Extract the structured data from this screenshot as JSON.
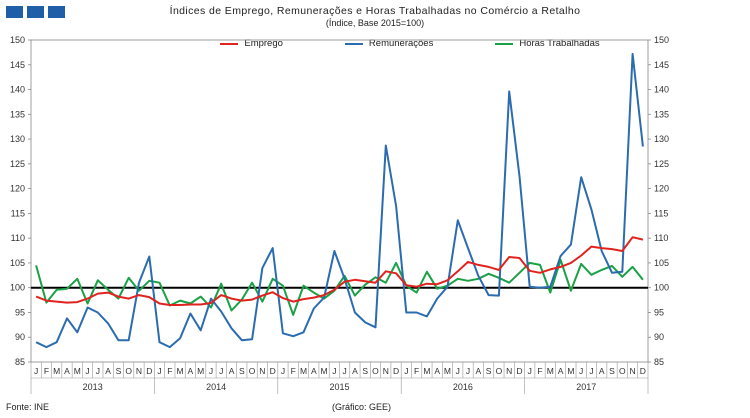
{
  "header": {
    "title": "Índices de Emprego, Remunerações e Horas Trabalhadas no Comércio a Retalho",
    "subtitle": "(Índice, Base 2015=100)"
  },
  "logo_color": "#1f5fa8",
  "footer": {
    "source": "Fonte: INE",
    "credit": "(Gráfico: GEE)"
  },
  "chart_data": {
    "type": "line",
    "ylim": [
      85,
      150
    ],
    "y_ticks": [
      85,
      90,
      95,
      100,
      105,
      110,
      115,
      120,
      125,
      130,
      135,
      140,
      145,
      150
    ],
    "reference_line": 100,
    "grid": false,
    "legend_position": "top",
    "month_labels": [
      "J",
      "F",
      "M",
      "A",
      "M",
      "J",
      "J",
      "A",
      "S",
      "O",
      "N",
      "D"
    ],
    "years": [
      "2013",
      "2014",
      "2015",
      "2016",
      "2017"
    ],
    "series": [
      {
        "name": "Emprego",
        "color": "#e0231f",
        "values": [
          98.2,
          97.4,
          97.2,
          97.0,
          97.1,
          97.8,
          98.8,
          99.0,
          98.2,
          97.8,
          98.5,
          98.1,
          96.8,
          96.5,
          96.5,
          96.6,
          96.6,
          96.9,
          98.5,
          97.8,
          97.4,
          97.6,
          98.4,
          99.1,
          97.9,
          97.2,
          97.7,
          98.0,
          98.5,
          99.6,
          101.2,
          101.6,
          101.3,
          101.0,
          103.3,
          102.9,
          100.5,
          100.2,
          100.8,
          100.7,
          101.5,
          103.3,
          105.2,
          104.6,
          104.2,
          103.6,
          106.2,
          106.0,
          103.4,
          103.0,
          103.7,
          104.2,
          105.0,
          106.5,
          108.3,
          108.0,
          107.8,
          107.4,
          110.2,
          109.7
        ]
      },
      {
        "name": "Remunerações",
        "color": "#2b6cb0",
        "values": [
          89.0,
          88.0,
          89.0,
          93.8,
          91.0,
          96.0,
          95.0,
          92.8,
          89.4,
          89.4,
          101.0,
          106.3,
          89.0,
          88.0,
          89.8,
          94.8,
          91.4,
          97.8,
          95.2,
          91.8,
          89.4,
          89.6,
          104.0,
          108.0,
          90.8,
          90.2,
          91.0,
          95.8,
          98.0,
          107.4,
          101.8,
          95.0,
          93.0,
          92.0,
          128.7,
          116.5,
          95.0,
          95.0,
          94.2,
          97.8,
          100.2,
          113.6,
          108.0,
          102.4,
          98.5,
          98.4,
          139.6,
          122.5,
          100.2,
          100.0,
          100.2,
          106.4,
          108.7,
          122.3,
          115.8,
          107.4,
          103.0,
          103.2,
          147.2,
          128.5
        ]
      },
      {
        "name": "Horas Trabalhadas",
        "color": "#1aa146",
        "values": [
          104.5,
          97.0,
          99.6,
          99.8,
          101.8,
          96.8,
          101.5,
          99.6,
          97.8,
          102.0,
          99.4,
          101.4,
          101.0,
          96.4,
          97.4,
          96.8,
          98.2,
          96.0,
          100.8,
          95.4,
          97.6,
          101.0,
          97.2,
          101.8,
          100.4,
          94.5,
          100.4,
          99.0,
          97.8,
          99.4,
          102.4,
          98.4,
          100.6,
          102.1,
          101.0,
          105.0,
          100.4,
          99.0,
          103.2,
          99.8,
          100.4,
          101.8,
          101.4,
          101.8,
          102.8,
          102.0,
          101.0,
          103.0,
          105.0,
          104.6,
          99.0,
          105.6,
          99.4,
          104.8,
          102.6,
          103.6,
          104.4,
          102.2,
          104.2,
          101.6
        ]
      }
    ]
  }
}
